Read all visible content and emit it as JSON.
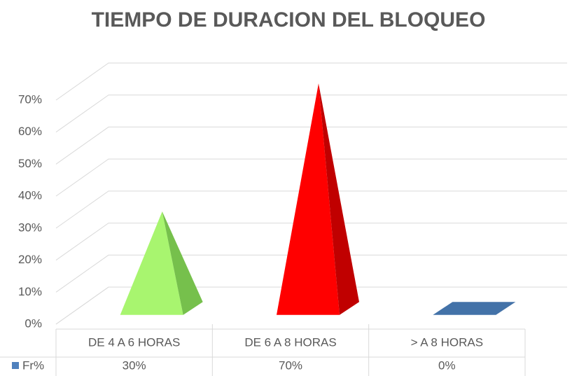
{
  "chart_data": {
    "type": "pyramid3d",
    "title": "TIEMPO DE DURACION DEL BLOQUEO",
    "categories": [
      "DE 4 A 6 HORAS",
      "DE 6 A 8 HORAS",
      "> A 8 HORAS"
    ],
    "series": [
      {
        "name": "Fr%",
        "color": "#4f81bd",
        "values": [
          30,
          70,
          0
        ],
        "value_labels": [
          "30%",
          "70%",
          "0%"
        ],
        "point_colors": [
          "#a8f56f",
          "#ff0000",
          "#4372a8"
        ]
      }
    ],
    "ylim": [
      0,
      70
    ],
    "yticks": [
      {
        "value": 0,
        "label": "0%"
      },
      {
        "value": 10,
        "label": "10%"
      },
      {
        "value": 20,
        "label": "20%"
      },
      {
        "value": 30,
        "label": "30%"
      },
      {
        "value": 40,
        "label": "40%"
      },
      {
        "value": 50,
        "label": "50%"
      },
      {
        "value": 60,
        "label": "60%"
      },
      {
        "value": 70,
        "label": "70%"
      }
    ],
    "grid": true,
    "data_table": true
  }
}
